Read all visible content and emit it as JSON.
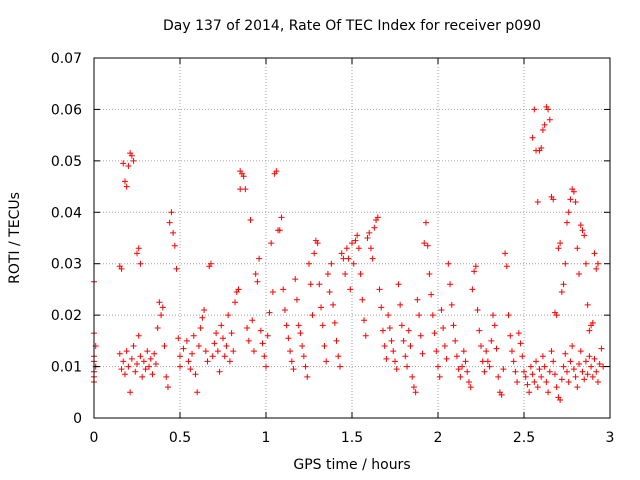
{
  "chart_data": {
    "type": "scatter",
    "title": "Day 137 of 2014, Rate Of TEC Index for receiver p090",
    "xlabel": "GPS time / hours",
    "ylabel": "ROTI / TECUs",
    "xlim": [
      0,
      3
    ],
    "ylim": [
      0,
      0.07
    ],
    "grid": true,
    "marker": "+",
    "color": "#ff0000",
    "x_ticks": [
      {
        "value": 0,
        "label": "0"
      },
      {
        "value": 0.5,
        "label": "0.5"
      },
      {
        "value": 1,
        "label": "1"
      },
      {
        "value": 1.5,
        "label": "1.5"
      },
      {
        "value": 2,
        "label": "2"
      },
      {
        "value": 2.5,
        "label": "2.5"
      },
      {
        "value": 3,
        "label": "3"
      }
    ],
    "y_ticks": [
      {
        "value": 0,
        "label": "0"
      },
      {
        "value": 0.01,
        "label": "0.01"
      },
      {
        "value": 0.02,
        "label": "0.02"
      },
      {
        "value": 0.03,
        "label": "0.03"
      },
      {
        "value": 0.04,
        "label": "0.04"
      },
      {
        "value": 0.05,
        "label": "0.05"
      },
      {
        "value": 0.06,
        "label": "0.06"
      },
      {
        "value": 0.07,
        "label": "0.07"
      }
    ],
    "points": [
      [
        0.0,
        0.0265
      ],
      [
        0.0,
        0.0165
      ],
      [
        0.0,
        0.012
      ],
      [
        0.0,
        0.011
      ],
      [
        0.0,
        0.009
      ],
      [
        0.0,
        0.007
      ],
      [
        0.0,
        0.008
      ],
      [
        0.01,
        0.014
      ],
      [
        0.01,
        0.01
      ],
      [
        0.15,
        0.0295
      ],
      [
        0.16,
        0.029
      ],
      [
        0.17,
        0.0495
      ],
      [
        0.18,
        0.046
      ],
      [
        0.19,
        0.045
      ],
      [
        0.2,
        0.049
      ],
      [
        0.21,
        0.0515
      ],
      [
        0.22,
        0.051
      ],
      [
        0.23,
        0.05
      ],
      [
        0.25,
        0.032
      ],
      [
        0.26,
        0.033
      ],
      [
        0.27,
        0.03
      ],
      [
        0.15,
        0.0125
      ],
      [
        0.16,
        0.0095
      ],
      [
        0.17,
        0.011
      ],
      [
        0.18,
        0.0085
      ],
      [
        0.19,
        0.013
      ],
      [
        0.2,
        0.01
      ],
      [
        0.21,
        0.005
      ],
      [
        0.22,
        0.0115
      ],
      [
        0.23,
        0.014
      ],
      [
        0.24,
        0.009
      ],
      [
        0.25,
        0.0105
      ],
      [
        0.26,
        0.016
      ],
      [
        0.27,
        0.012
      ],
      [
        0.28,
        0.008
      ],
      [
        0.29,
        0.011
      ],
      [
        0.3,
        0.0095
      ],
      [
        0.31,
        0.013
      ],
      [
        0.32,
        0.01
      ],
      [
        0.33,
        0.0115
      ],
      [
        0.34,
        0.0085
      ],
      [
        0.35,
        0.0125
      ],
      [
        0.36,
        0.0105
      ],
      [
        0.37,
        0.0175
      ],
      [
        0.38,
        0.0225
      ],
      [
        0.39,
        0.02
      ],
      [
        0.4,
        0.0215
      ],
      [
        0.41,
        0.014
      ],
      [
        0.42,
        0.008
      ],
      [
        0.43,
        0.006
      ],
      [
        0.44,
        0.038
      ],
      [
        0.45,
        0.04
      ],
      [
        0.46,
        0.036
      ],
      [
        0.47,
        0.0335
      ],
      [
        0.48,
        0.029
      ],
      [
        0.49,
        0.0155
      ],
      [
        0.5,
        0.012
      ],
      [
        0.5,
        0.01
      ],
      [
        0.52,
        0.0135
      ],
      [
        0.54,
        0.015
      ],
      [
        0.55,
        0.011
      ],
      [
        0.56,
        0.0095
      ],
      [
        0.57,
        0.0125
      ],
      [
        0.58,
        0.016
      ],
      [
        0.59,
        0.0085
      ],
      [
        0.6,
        0.005
      ],
      [
        0.61,
        0.014
      ],
      [
        0.62,
        0.0175
      ],
      [
        0.63,
        0.0195
      ],
      [
        0.64,
        0.021
      ],
      [
        0.65,
        0.013
      ],
      [
        0.66,
        0.011
      ],
      [
        0.67,
        0.0295
      ],
      [
        0.68,
        0.03
      ],
      [
        0.69,
        0.012
      ],
      [
        0.7,
        0.0145
      ],
      [
        0.71,
        0.0165
      ],
      [
        0.72,
        0.013
      ],
      [
        0.73,
        0.009
      ],
      [
        0.74,
        0.018
      ],
      [
        0.75,
        0.0155
      ],
      [
        0.76,
        0.012
      ],
      [
        0.77,
        0.014
      ],
      [
        0.78,
        0.02
      ],
      [
        0.79,
        0.011
      ],
      [
        0.8,
        0.0165
      ],
      [
        0.81,
        0.013
      ],
      [
        0.82,
        0.0225
      ],
      [
        0.83,
        0.0245
      ],
      [
        0.84,
        0.025
      ],
      [
        0.85,
        0.048
      ],
      [
        0.86,
        0.0475
      ],
      [
        0.87,
        0.047
      ],
      [
        0.85,
        0.0445
      ],
      [
        0.88,
        0.0445
      ],
      [
        0.89,
        0.0175
      ],
      [
        0.9,
        0.015
      ],
      [
        0.91,
        0.0385
      ],
      [
        0.92,
        0.019
      ],
      [
        0.93,
        0.013
      ],
      [
        0.94,
        0.028
      ],
      [
        0.95,
        0.0265
      ],
      [
        0.96,
        0.031
      ],
      [
        0.97,
        0.017
      ],
      [
        0.98,
        0.0145
      ],
      [
        0.99,
        0.012
      ],
      [
        1.0,
        0.01
      ],
      [
        1.01,
        0.016
      ],
      [
        1.02,
        0.0205
      ],
      [
        1.03,
        0.034
      ],
      [
        1.04,
        0.0245
      ],
      [
        1.05,
        0.0475
      ],
      [
        1.06,
        0.048
      ],
      [
        1.07,
        0.0365
      ],
      [
        1.08,
        0.0365
      ],
      [
        1.09,
        0.039
      ],
      [
        1.1,
        0.025
      ],
      [
        1.11,
        0.021
      ],
      [
        1.12,
        0.018
      ],
      [
        1.13,
        0.0155
      ],
      [
        1.14,
        0.013
      ],
      [
        1.15,
        0.011
      ],
      [
        1.16,
        0.0095
      ],
      [
        1.17,
        0.027
      ],
      [
        1.18,
        0.023
      ],
      [
        1.19,
        0.018
      ],
      [
        1.2,
        0.0165
      ],
      [
        1.21,
        0.014
      ],
      [
        1.22,
        0.012
      ],
      [
        1.23,
        0.01
      ],
      [
        1.24,
        0.008
      ],
      [
        1.25,
        0.03
      ],
      [
        1.26,
        0.026
      ],
      [
        1.27,
        0.02
      ],
      [
        1.28,
        0.032
      ],
      [
        1.29,
        0.0345
      ],
      [
        1.3,
        0.034
      ],
      [
        1.31,
        0.026
      ],
      [
        1.32,
        0.0215
      ],
      [
        1.33,
        0.018
      ],
      [
        1.34,
        0.014
      ],
      [
        1.35,
        0.011
      ],
      [
        1.36,
        0.028
      ],
      [
        1.37,
        0.0245
      ],
      [
        1.38,
        0.03
      ],
      [
        1.39,
        0.022
      ],
      [
        1.4,
        0.0185
      ],
      [
        1.41,
        0.015
      ],
      [
        1.42,
        0.012
      ],
      [
        1.43,
        0.01
      ],
      [
        1.44,
        0.032
      ],
      [
        1.45,
        0.031
      ],
      [
        1.46,
        0.028
      ],
      [
        1.47,
        0.033
      ],
      [
        1.48,
        0.031
      ],
      [
        1.49,
        0.025
      ],
      [
        1.5,
        0.034
      ],
      [
        1.51,
        0.03
      ],
      [
        1.52,
        0.0345
      ],
      [
        1.53,
        0.0355
      ],
      [
        1.54,
        0.033
      ],
      [
        1.55,
        0.028
      ],
      [
        1.56,
        0.023
      ],
      [
        1.57,
        0.019
      ],
      [
        1.58,
        0.016
      ],
      [
        1.59,
        0.035
      ],
      [
        1.6,
        0.036
      ],
      [
        1.61,
        0.033
      ],
      [
        1.62,
        0.031
      ],
      [
        1.63,
        0.037
      ],
      [
        1.64,
        0.0385
      ],
      [
        1.65,
        0.039
      ],
      [
        1.66,
        0.025
      ],
      [
        1.67,
        0.0215
      ],
      [
        1.68,
        0.017
      ],
      [
        1.69,
        0.014
      ],
      [
        1.7,
        0.0115
      ],
      [
        1.71,
        0.02
      ],
      [
        1.72,
        0.0175
      ],
      [
        1.73,
        0.015
      ],
      [
        1.74,
        0.013
      ],
      [
        1.75,
        0.011
      ],
      [
        1.76,
        0.0095
      ],
      [
        1.77,
        0.026
      ],
      [
        1.78,
        0.022
      ],
      [
        1.79,
        0.018
      ],
      [
        1.8,
        0.015
      ],
      [
        1.81,
        0.012
      ],
      [
        1.82,
        0.01
      ],
      [
        1.83,
        0.017
      ],
      [
        1.84,
        0.014
      ],
      [
        1.85,
        0.008
      ],
      [
        1.86,
        0.006
      ],
      [
        1.87,
        0.005
      ],
      [
        1.88,
        0.023
      ],
      [
        1.89,
        0.02
      ],
      [
        1.9,
        0.016
      ],
      [
        1.91,
        0.0125
      ],
      [
        1.92,
        0.034
      ],
      [
        1.93,
        0.038
      ],
      [
        1.94,
        0.0335
      ],
      [
        1.95,
        0.028
      ],
      [
        1.96,
        0.024
      ],
      [
        1.97,
        0.02
      ],
      [
        1.98,
        0.0165
      ],
      [
        1.99,
        0.013
      ],
      [
        2.0,
        0.01
      ],
      [
        2.01,
        0.008
      ],
      [
        2.02,
        0.021
      ],
      [
        2.03,
        0.0175
      ],
      [
        2.04,
        0.014
      ],
      [
        2.05,
        0.0115
      ],
      [
        2.06,
        0.03
      ],
      [
        2.07,
        0.026
      ],
      [
        2.08,
        0.022
      ],
      [
        2.09,
        0.018
      ],
      [
        2.1,
        0.015
      ],
      [
        2.11,
        0.012
      ],
      [
        2.12,
        0.0095
      ],
      [
        2.13,
        0.008
      ],
      [
        2.14,
        0.01
      ],
      [
        2.15,
        0.013
      ],
      [
        2.16,
        0.011
      ],
      [
        2.17,
        0.009
      ],
      [
        2.18,
        0.007
      ],
      [
        2.19,
        0.006
      ],
      [
        2.2,
        0.025
      ],
      [
        2.21,
        0.0285
      ],
      [
        2.22,
        0.0295
      ],
      [
        2.23,
        0.021
      ],
      [
        2.24,
        0.017
      ],
      [
        2.25,
        0.014
      ],
      [
        2.26,
        0.011
      ],
      [
        2.27,
        0.009
      ],
      [
        2.28,
        0.013
      ],
      [
        2.29,
        0.011
      ],
      [
        2.3,
        0.01
      ],
      [
        2.31,
        0.015
      ],
      [
        2.32,
        0.02
      ],
      [
        2.33,
        0.018
      ],
      [
        2.34,
        0.0135
      ],
      [
        2.35,
        0.008
      ],
      [
        2.36,
        0.005
      ],
      [
        2.37,
        0.0045
      ],
      [
        2.38,
        0.0095
      ],
      [
        2.39,
        0.032
      ],
      [
        2.4,
        0.0295
      ],
      [
        2.41,
        0.02
      ],
      [
        2.42,
        0.016
      ],
      [
        2.43,
        0.013
      ],
      [
        2.44,
        0.011
      ],
      [
        2.45,
        0.009
      ],
      [
        2.46,
        0.007
      ],
      [
        2.47,
        0.0165
      ],
      [
        2.48,
        0.0145
      ],
      [
        2.49,
        0.012
      ],
      [
        2.5,
        0.009
      ],
      [
        2.51,
        0.008
      ],
      [
        2.52,
        0.0065
      ],
      [
        2.53,
        0.005
      ],
      [
        2.54,
        0.01
      ],
      [
        2.55,
        0.0545
      ],
      [
        2.56,
        0.06
      ],
      [
        2.57,
        0.052
      ],
      [
        2.58,
        0.042
      ],
      [
        2.59,
        0.052
      ],
      [
        2.6,
        0.0525
      ],
      [
        2.61,
        0.056
      ],
      [
        2.62,
        0.057
      ],
      [
        2.63,
        0.0605
      ],
      [
        2.64,
        0.06
      ],
      [
        2.65,
        0.058
      ],
      [
        2.66,
        0.043
      ],
      [
        2.67,
        0.0425
      ],
      [
        2.68,
        0.0205
      ],
      [
        2.69,
        0.02
      ],
      [
        2.7,
        0.033
      ],
      [
        2.71,
        0.034
      ],
      [
        2.72,
        0.0245
      ],
      [
        2.73,
        0.026
      ],
      [
        2.74,
        0.03
      ],
      [
        2.75,
        0.038
      ],
      [
        2.76,
        0.04
      ],
      [
        2.77,
        0.0425
      ],
      [
        2.78,
        0.0445
      ],
      [
        2.79,
        0.044
      ],
      [
        2.8,
        0.042
      ],
      [
        2.81,
        0.033
      ],
      [
        2.82,
        0.028
      ],
      [
        2.83,
        0.0375
      ],
      [
        2.84,
        0.0365
      ],
      [
        2.85,
        0.0355
      ],
      [
        2.86,
        0.03
      ],
      [
        2.87,
        0.022
      ],
      [
        2.88,
        0.017
      ],
      [
        2.89,
        0.018
      ],
      [
        2.9,
        0.0185
      ],
      [
        2.91,
        0.032
      ],
      [
        2.92,
        0.029
      ],
      [
        2.93,
        0.03
      ],
      [
        2.55,
        0.0085
      ],
      [
        2.56,
        0.007
      ],
      [
        2.57,
        0.011
      ],
      [
        2.58,
        0.006
      ],
      [
        2.59,
        0.0095
      ],
      [
        2.6,
        0.008
      ],
      [
        2.61,
        0.012
      ],
      [
        2.62,
        0.01
      ],
      [
        2.63,
        0.007
      ],
      [
        2.64,
        0.005
      ],
      [
        2.65,
        0.009
      ],
      [
        2.66,
        0.013
      ],
      [
        2.67,
        0.011
      ],
      [
        2.68,
        0.0085
      ],
      [
        2.69,
        0.006
      ],
      [
        2.7,
        0.004
      ],
      [
        2.71,
        0.0035
      ],
      [
        2.72,
        0.0075
      ],
      [
        2.73,
        0.01
      ],
      [
        2.74,
        0.0125
      ],
      [
        2.75,
        0.009
      ],
      [
        2.76,
        0.007
      ],
      [
        2.77,
        0.011
      ],
      [
        2.78,
        0.014
      ],
      [
        2.79,
        0.0095
      ],
      [
        2.8,
        0.008
      ],
      [
        2.81,
        0.006
      ],
      [
        2.82,
        0.0105
      ],
      [
        2.83,
        0.013
      ],
      [
        2.84,
        0.009
      ],
      [
        2.85,
        0.0075
      ],
      [
        2.86,
        0.011
      ],
      [
        2.87,
        0.0085
      ],
      [
        2.88,
        0.012
      ],
      [
        2.89,
        0.01
      ],
      [
        2.9,
        0.008
      ],
      [
        2.91,
        0.0115
      ],
      [
        2.92,
        0.009
      ],
      [
        2.93,
        0.007
      ],
      [
        2.94,
        0.0105
      ],
      [
        2.95,
        0.0135
      ],
      [
        2.96,
        0.01
      ]
    ]
  }
}
